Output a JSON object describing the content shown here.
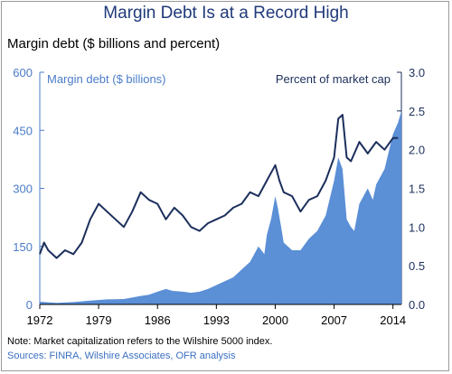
{
  "chart_data": {
    "type": "area",
    "title": "Margin Debt Is at a Record High",
    "subtitle": "Margin debt ($ billions and percent)",
    "x_ticks": [
      "1972",
      "1979",
      "1986",
      "1993",
      "2000",
      "2007",
      "2014"
    ],
    "xlim": [
      1972,
      2015
    ],
    "left_axis": {
      "ticks": [
        "0",
        "150",
        "300",
        "450",
        "600"
      ],
      "ylim": [
        0,
        600
      ]
    },
    "right_axis": {
      "ticks": [
        "0.0",
        "0.5",
        "1.0",
        "1.5",
        "2.0",
        "2.5",
        "3.0"
      ],
      "ylim": [
        0,
        3
      ]
    },
    "series": [
      {
        "name": "Margin debt ($ billions)",
        "kind": "area",
        "axis": "left",
        "color": "#5b8fd6",
        "x": [
          1972,
          1974,
          1976,
          1978,
          1980,
          1982,
          1984,
          1985,
          1986,
          1987,
          1987.8,
          1989,
          1990,
          1991,
          1992,
          1993,
          1994,
          1995,
          1996,
          1997,
          1998,
          1998.7,
          1999,
          1999.5,
          2000,
          2000.3,
          2000.7,
          2001,
          2002,
          2003,
          2004,
          2005,
          2006,
          2007,
          2007.5,
          2008,
          2008.5,
          2009,
          2009.4,
          2010,
          2011,
          2011.6,
          2012,
          2013,
          2014,
          2014.6,
          2015
        ],
        "y": [
          7,
          4,
          6,
          10,
          13,
          14,
          22,
          25,
          33,
          40,
          35,
          33,
          30,
          33,
          40,
          50,
          60,
          70,
          90,
          110,
          150,
          130,
          180,
          220,
          280,
          250,
          200,
          160,
          140,
          140,
          170,
          190,
          230,
          320,
          380,
          350,
          220,
          200,
          190,
          260,
          300,
          270,
          310,
          350,
          440,
          470,
          500
        ]
      },
      {
        "name": "Percent of market cap",
        "kind": "line",
        "axis": "right",
        "color": "#1c2f5c",
        "x": [
          1972,
          1972.5,
          1973,
          1974,
          1975,
          1976,
          1977,
          1978,
          1979,
          1980,
          1981,
          1982,
          1983,
          1984,
          1985,
          1986,
          1987,
          1988,
          1989,
          1990,
          1991,
          1992,
          1993,
          1994,
          1995,
          1996,
          1997,
          1998,
          1999,
          2000,
          2000.5,
          2001,
          2002,
          2003,
          2004,
          2005,
          2006,
          2007,
          2007.5,
          2008,
          2008.5,
          2009,
          2010,
          2011,
          2012,
          2013,
          2014,
          2014.6
        ],
        "y": [
          0.65,
          0.8,
          0.7,
          0.6,
          0.7,
          0.65,
          0.8,
          1.1,
          1.3,
          1.2,
          1.1,
          1.0,
          1.2,
          1.45,
          1.35,
          1.3,
          1.1,
          1.25,
          1.15,
          1.0,
          0.95,
          1.05,
          1.1,
          1.15,
          1.25,
          1.3,
          1.45,
          1.4,
          1.6,
          1.8,
          1.6,
          1.45,
          1.4,
          1.2,
          1.35,
          1.4,
          1.6,
          1.9,
          2.4,
          2.45,
          1.9,
          1.85,
          2.1,
          1.95,
          2.1,
          2.0,
          2.15,
          2.15
        ]
      }
    ],
    "grid": false,
    "legend": "inline labels at top"
  },
  "footer": {
    "note": "Note: Market capitalization refers to the Wilshire 5000 index.",
    "sources": "Sources: FINRA, Wilshire Associates, OFR analysis"
  }
}
